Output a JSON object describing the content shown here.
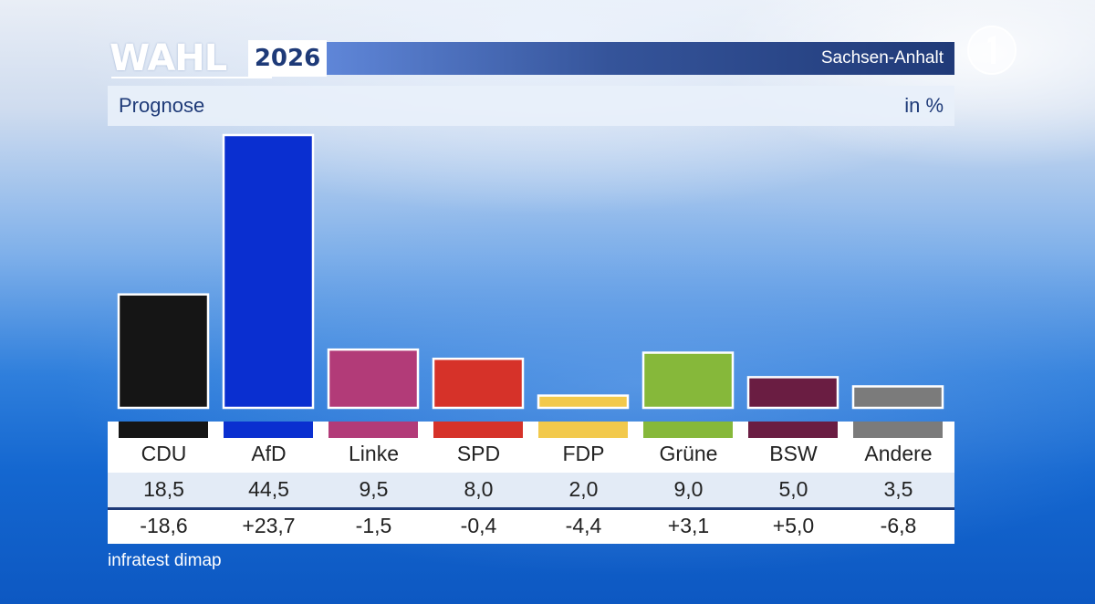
{
  "header": {
    "brand_word": "WAHL",
    "year": "2026",
    "region": "Sachsen-Anhalt",
    "logo": "ard-1-logo"
  },
  "title": "Prognose",
  "unit": "in %",
  "source": "infratest dimap",
  "colors": {
    "CDU": "#151515",
    "AfD": "#0a2fd0",
    "Linke": "#b23b78",
    "SPD": "#d63229",
    "FDP": "#f2c94c",
    "Grüne": "#86b83a",
    "BSW": "#6a1d42",
    "Andere": "#7b7b7b"
  },
  "chart_data": {
    "type": "bar",
    "title": "Prognose",
    "ylabel": "in %",
    "categories": [
      "CDU",
      "AfD",
      "Linke",
      "SPD",
      "FDP",
      "Grüne",
      "BSW",
      "Andere"
    ],
    "values": [
      18.5,
      44.5,
      9.5,
      8.0,
      2.0,
      9.0,
      5.0,
      3.5
    ],
    "value_labels": [
      "18,5",
      "44,5",
      "9,5",
      "8,0",
      "2,0",
      "9,0",
      "5,0",
      "3,5"
    ],
    "diffs": [
      -18.6,
      23.7,
      -1.5,
      -0.4,
      -4.4,
      3.1,
      5.0,
      -6.8
    ],
    "diff_labels": [
      "-18,6",
      "+23,7",
      "-1,5",
      "-0,4",
      "-4,4",
      "+3,1",
      "+5,0",
      "-6,8"
    ],
    "ylim": [
      0,
      44.5
    ],
    "grid": false,
    "legend": "none"
  }
}
